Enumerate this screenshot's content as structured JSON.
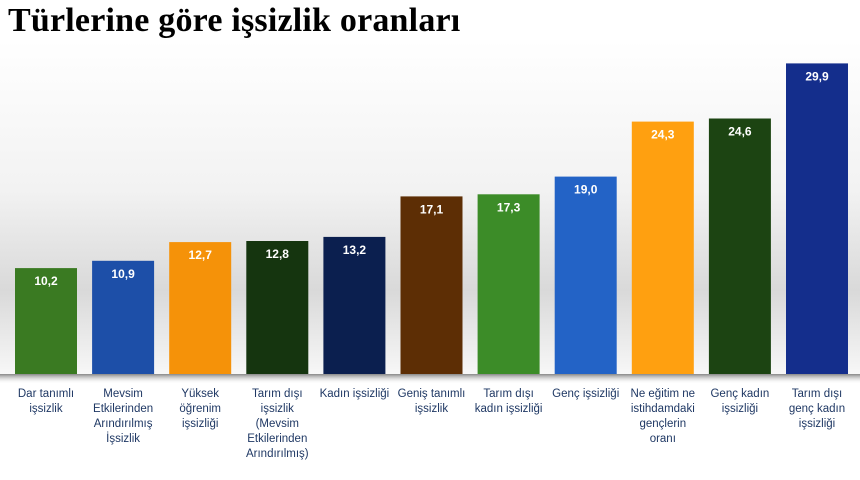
{
  "chart_data": {
    "type": "bar",
    "title": "Türlerine göre işsizlik oranları",
    "categories": [
      [
        "Dar tanımlı",
        "işsizlik"
      ],
      [
        "Mevsim",
        "Etkilerinden",
        "Arındırılmış",
        "İşsizlik"
      ],
      [
        "Yüksek",
        "öğrenim",
        "işsizliği"
      ],
      [
        "Tarım dışı",
        "işsizlik",
        "(Mevsim",
        "Etkilerinden",
        "Arındırılmış)"
      ],
      [
        "Kadın işsizliği"
      ],
      [
        "Geniş tanımlı",
        "işsizlik"
      ],
      [
        "Tarım dışı",
        "kadın işsizliği"
      ],
      [
        "Genç işsizliği"
      ],
      [
        "Ne eğitim ne",
        "istihdamdaki",
        "gençlerin",
        "oranı"
      ],
      [
        "Genç kadın",
        "işsizliği"
      ],
      [
        "Tarım dışı",
        "genç kadın",
        "işsizliği"
      ]
    ],
    "values": [
      10.2,
      10.9,
      12.7,
      12.8,
      13.2,
      17.1,
      17.3,
      19.0,
      24.3,
      24.6,
      29.9
    ],
    "value_labels": [
      "10,2",
      "10,9",
      "12,7",
      "12,8",
      "13,2",
      "17,1",
      "17,3",
      "19,0",
      "24,3",
      "24,6",
      "29,9"
    ],
    "colors": [
      "#3a7a22",
      "#1d4fa8",
      "#f59209",
      "#15350f",
      "#0b1f4f",
      "#5d2e05",
      "#3c8c28",
      "#2363c6",
      "#ffa010",
      "#1c4412",
      "#142e8c"
    ],
    "ylim": [
      0,
      31
    ],
    "grid": false,
    "legend": "none"
  }
}
